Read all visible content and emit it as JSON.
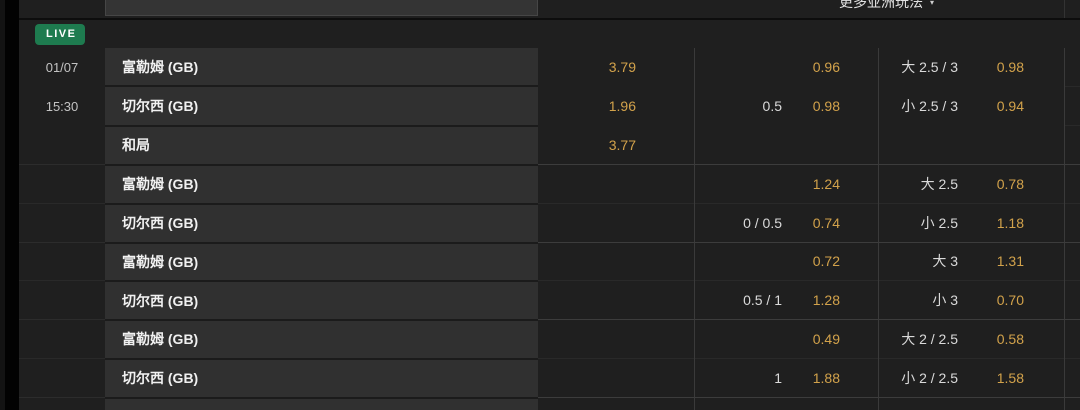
{
  "header": {
    "more_markets_label": "更多亚洲玩法",
    "caret": "▾"
  },
  "live_label": "LIVE",
  "match": {
    "date": "01/07",
    "time": "15:30"
  },
  "colors": {
    "odds_gold": "#d2a24b",
    "live_green": "#1e7b4f",
    "team_column_bg": "#303030",
    "page_bg": "#1f1f1f"
  },
  "groups": [
    {
      "rows": [
        {
          "team": "富勒姆 (GB)",
          "x2": "3.79",
          "hcap_line": "",
          "hcap_odds": "0.96",
          "ou_line": "大 2.5 / 3",
          "ou_odds": "0.98"
        },
        {
          "team": "切尔西 (GB)",
          "x2": "1.96",
          "hcap_line": "0.5",
          "hcap_odds": "0.98",
          "ou_line": "小 2.5 / 3",
          "ou_odds": "0.94"
        },
        {
          "team": "和局",
          "x2": "3.77",
          "hcap_line": "",
          "hcap_odds": "",
          "ou_line": "",
          "ou_odds": ""
        }
      ]
    },
    {
      "rows": [
        {
          "team": "富勒姆 (GB)",
          "x2": "",
          "hcap_line": "",
          "hcap_odds": "1.24",
          "ou_line": "大 2.5",
          "ou_odds": "0.78"
        },
        {
          "team": "切尔西 (GB)",
          "x2": "",
          "hcap_line": "0 / 0.5",
          "hcap_odds": "0.74",
          "ou_line": "小 2.5",
          "ou_odds": "1.18"
        }
      ]
    },
    {
      "rows": [
        {
          "team": "富勒姆 (GB)",
          "x2": "",
          "hcap_line": "",
          "hcap_odds": "0.72",
          "ou_line": "大 3",
          "ou_odds": "1.31"
        },
        {
          "team": "切尔西 (GB)",
          "x2": "",
          "hcap_line": "0.5 / 1",
          "hcap_odds": "1.28",
          "ou_line": "小 3",
          "ou_odds": "0.70"
        }
      ]
    },
    {
      "rows": [
        {
          "team": "富勒姆 (GB)",
          "x2": "",
          "hcap_line": "",
          "hcap_odds": "0.49",
          "ou_line": "大 2 / 2.5",
          "ou_odds": "0.58"
        },
        {
          "team": "切尔西 (GB)",
          "x2": "",
          "hcap_line": "1",
          "hcap_odds": "1.88",
          "ou_line": "小 2 / 2.5",
          "ou_odds": "1.58"
        }
      ]
    }
  ]
}
